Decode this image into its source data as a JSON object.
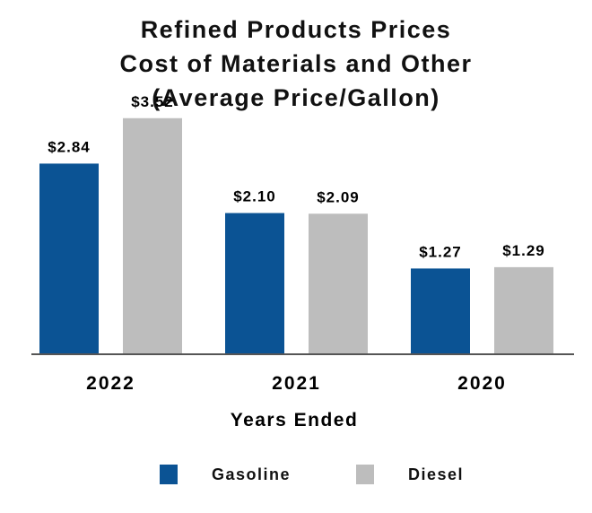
{
  "chart_data": {
    "type": "bar",
    "title": [
      "Refined Products Prices",
      "Cost of Materials and Other",
      "(Average Price/Gallon)"
    ],
    "categories": [
      "2022",
      "2021",
      "2020"
    ],
    "series": [
      {
        "name": "Gasoline",
        "color": "#0b5394",
        "values": [
          2.84,
          2.1,
          1.27
        ],
        "labels": [
          "$2.84",
          "$2.10",
          "$1.27"
        ]
      },
      {
        "name": "Diesel",
        "color": "#bdbdbd",
        "values": [
          3.52,
          2.09,
          1.29
        ],
        "labels": [
          "$3.52",
          "$2.09",
          "$1.29"
        ]
      }
    ],
    "xlabel": "Years Ended",
    "ylabel": "",
    "ylim": [
      0,
      4
    ],
    "grid": false,
    "legend_position": "bottom"
  }
}
